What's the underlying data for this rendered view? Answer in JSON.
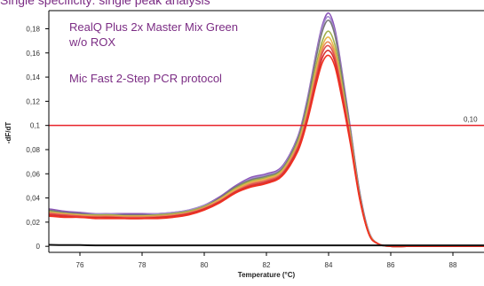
{
  "header": {
    "cut_text": "Single specificity: single peak analysis"
  },
  "annotations": {
    "line1": "RealQ Plus 2x Master Mix Green",
    "line2": "w/o ROX",
    "line3": "Mic Fast 2-Step PCR protocol"
  },
  "threshold_label": "0,10",
  "colors": {
    "annotation": "#7b2c84",
    "threshold": "#e8232a",
    "baseline": "#111111"
  },
  "chart_data": {
    "type": "line",
    "title": "",
    "xlabel": "Temperature (°C)",
    "ylabel": "-dF/dT",
    "xlim": [
      75.0,
      89.0
    ],
    "ylim": [
      -0.005,
      0.195
    ],
    "grid": false,
    "x_ticks": [
      76,
      78,
      80,
      82,
      84,
      86,
      88
    ],
    "x_tick_labels": [
      "76",
      "78",
      "80",
      "82",
      "84",
      "86",
      "88"
    ],
    "y_ticks": [
      0,
      0.02,
      0.04,
      0.06,
      0.08,
      0.1,
      0.12,
      0.14,
      0.16,
      0.18
    ],
    "y_tick_labels": [
      "0",
      "0,02",
      "0,04",
      "0,06",
      "0,08",
      "0,1",
      "0,12",
      "0,14",
      "0,16",
      "0,18"
    ],
    "threshold": 0.1,
    "x": [
      75.0,
      75.5,
      76.0,
      76.5,
      77.0,
      77.5,
      78.0,
      78.5,
      79.0,
      79.5,
      80.0,
      80.5,
      81.0,
      81.5,
      82.0,
      82.5,
      83.0,
      83.3,
      83.6,
      83.8,
      84.0,
      84.2,
      84.4,
      84.7,
      85.0,
      85.3,
      85.6,
      86.0,
      86.5,
      87.0,
      88.0,
      89.0
    ],
    "series": [
      {
        "color": "#8a55b8",
        "values": [
          0.031,
          0.029,
          0.028,
          0.027,
          0.027,
          0.027,
          0.027,
          0.027,
          0.028,
          0.03,
          0.034,
          0.041,
          0.05,
          0.057,
          0.06,
          0.066,
          0.09,
          0.12,
          0.16,
          0.183,
          0.193,
          0.18,
          0.15,
          0.098,
          0.045,
          0.012,
          0.002,
          0.0,
          0.0,
          0.0,
          0.0,
          0.0
        ]
      },
      {
        "color": "#a58cd0",
        "values": [
          0.03,
          0.028,
          0.027,
          0.027,
          0.027,
          0.026,
          0.026,
          0.027,
          0.028,
          0.03,
          0.034,
          0.04,
          0.049,
          0.056,
          0.059,
          0.065,
          0.089,
          0.119,
          0.158,
          0.181,
          0.19,
          0.177,
          0.148,
          0.097,
          0.044,
          0.012,
          0.002,
          0.0,
          0.0,
          0.0,
          0.0,
          0.0
        ]
      },
      {
        "color": "#777777",
        "values": [
          0.03,
          0.028,
          0.027,
          0.026,
          0.026,
          0.026,
          0.026,
          0.026,
          0.027,
          0.029,
          0.033,
          0.04,
          0.049,
          0.055,
          0.058,
          0.064,
          0.088,
          0.117,
          0.156,
          0.178,
          0.187,
          0.175,
          0.146,
          0.096,
          0.044,
          0.011,
          0.002,
          0.0,
          0.0,
          0.0,
          0.0,
          0.0
        ]
      },
      {
        "color": "#a0b04a",
        "values": [
          0.029,
          0.027,
          0.026,
          0.026,
          0.026,
          0.025,
          0.025,
          0.026,
          0.027,
          0.029,
          0.033,
          0.039,
          0.048,
          0.054,
          0.057,
          0.063,
          0.086,
          0.113,
          0.15,
          0.17,
          0.178,
          0.167,
          0.14,
          0.093,
          0.042,
          0.011,
          0.002,
          0.0,
          0.0,
          0.0,
          0.0,
          0.0
        ]
      },
      {
        "color": "#e8b84a",
        "values": [
          0.028,
          0.027,
          0.026,
          0.025,
          0.025,
          0.025,
          0.025,
          0.025,
          0.026,
          0.028,
          0.032,
          0.039,
          0.047,
          0.053,
          0.056,
          0.062,
          0.084,
          0.11,
          0.146,
          0.166,
          0.173,
          0.162,
          0.136,
          0.091,
          0.041,
          0.011,
          0.002,
          0.0,
          0.0,
          0.0,
          0.0,
          0.0
        ]
      },
      {
        "color": "#e88a5a",
        "values": [
          0.028,
          0.026,
          0.025,
          0.025,
          0.025,
          0.024,
          0.024,
          0.025,
          0.026,
          0.028,
          0.032,
          0.038,
          0.046,
          0.052,
          0.055,
          0.061,
          0.083,
          0.108,
          0.143,
          0.163,
          0.169,
          0.159,
          0.134,
          0.09,
          0.041,
          0.01,
          0.002,
          0.0,
          0.0,
          0.0,
          0.0,
          0.0
        ]
      },
      {
        "color": "#e05050",
        "values": [
          0.027,
          0.026,
          0.025,
          0.024,
          0.024,
          0.024,
          0.024,
          0.024,
          0.025,
          0.027,
          0.031,
          0.037,
          0.045,
          0.051,
          0.054,
          0.06,
          0.081,
          0.106,
          0.14,
          0.16,
          0.166,
          0.156,
          0.132,
          0.088,
          0.04,
          0.01,
          0.002,
          0.0,
          0.0,
          0.0,
          0.0,
          0.0
        ]
      },
      {
        "color": "#d83030",
        "values": [
          0.026,
          0.025,
          0.024,
          0.024,
          0.024,
          0.023,
          0.023,
          0.024,
          0.025,
          0.027,
          0.031,
          0.037,
          0.045,
          0.05,
          0.053,
          0.059,
          0.08,
          0.104,
          0.137,
          0.156,
          0.162,
          0.153,
          0.129,
          0.087,
          0.04,
          0.01,
          0.002,
          0.0,
          0.0,
          0.0,
          0.0,
          0.0
        ]
      },
      {
        "color": "#f03020",
        "values": [
          0.025,
          0.024,
          0.024,
          0.023,
          0.023,
          0.023,
          0.023,
          0.023,
          0.024,
          0.026,
          0.03,
          0.036,
          0.044,
          0.049,
          0.052,
          0.058,
          0.078,
          0.102,
          0.134,
          0.152,
          0.158,
          0.149,
          0.126,
          0.085,
          0.039,
          0.01,
          0.002,
          0.0,
          0.0,
          0.0,
          0.0,
          0.0
        ]
      },
      {
        "color": "#111111",
        "values": [
          0.0012,
          0.001,
          0.001,
          0.0008,
          0.0008,
          0.0008,
          0.0008,
          0.0008,
          0.0008,
          0.0008,
          0.0008,
          0.0008,
          0.0008,
          0.0008,
          0.0008,
          0.0008,
          0.0008,
          0.0008,
          0.0008,
          0.0008,
          0.0008,
          0.0008,
          0.0008,
          0.0008,
          0.0008,
          0.0008,
          0.0008,
          0.0008,
          0.0008,
          0.0008,
          0.0008,
          0.0008
        ]
      }
    ]
  }
}
